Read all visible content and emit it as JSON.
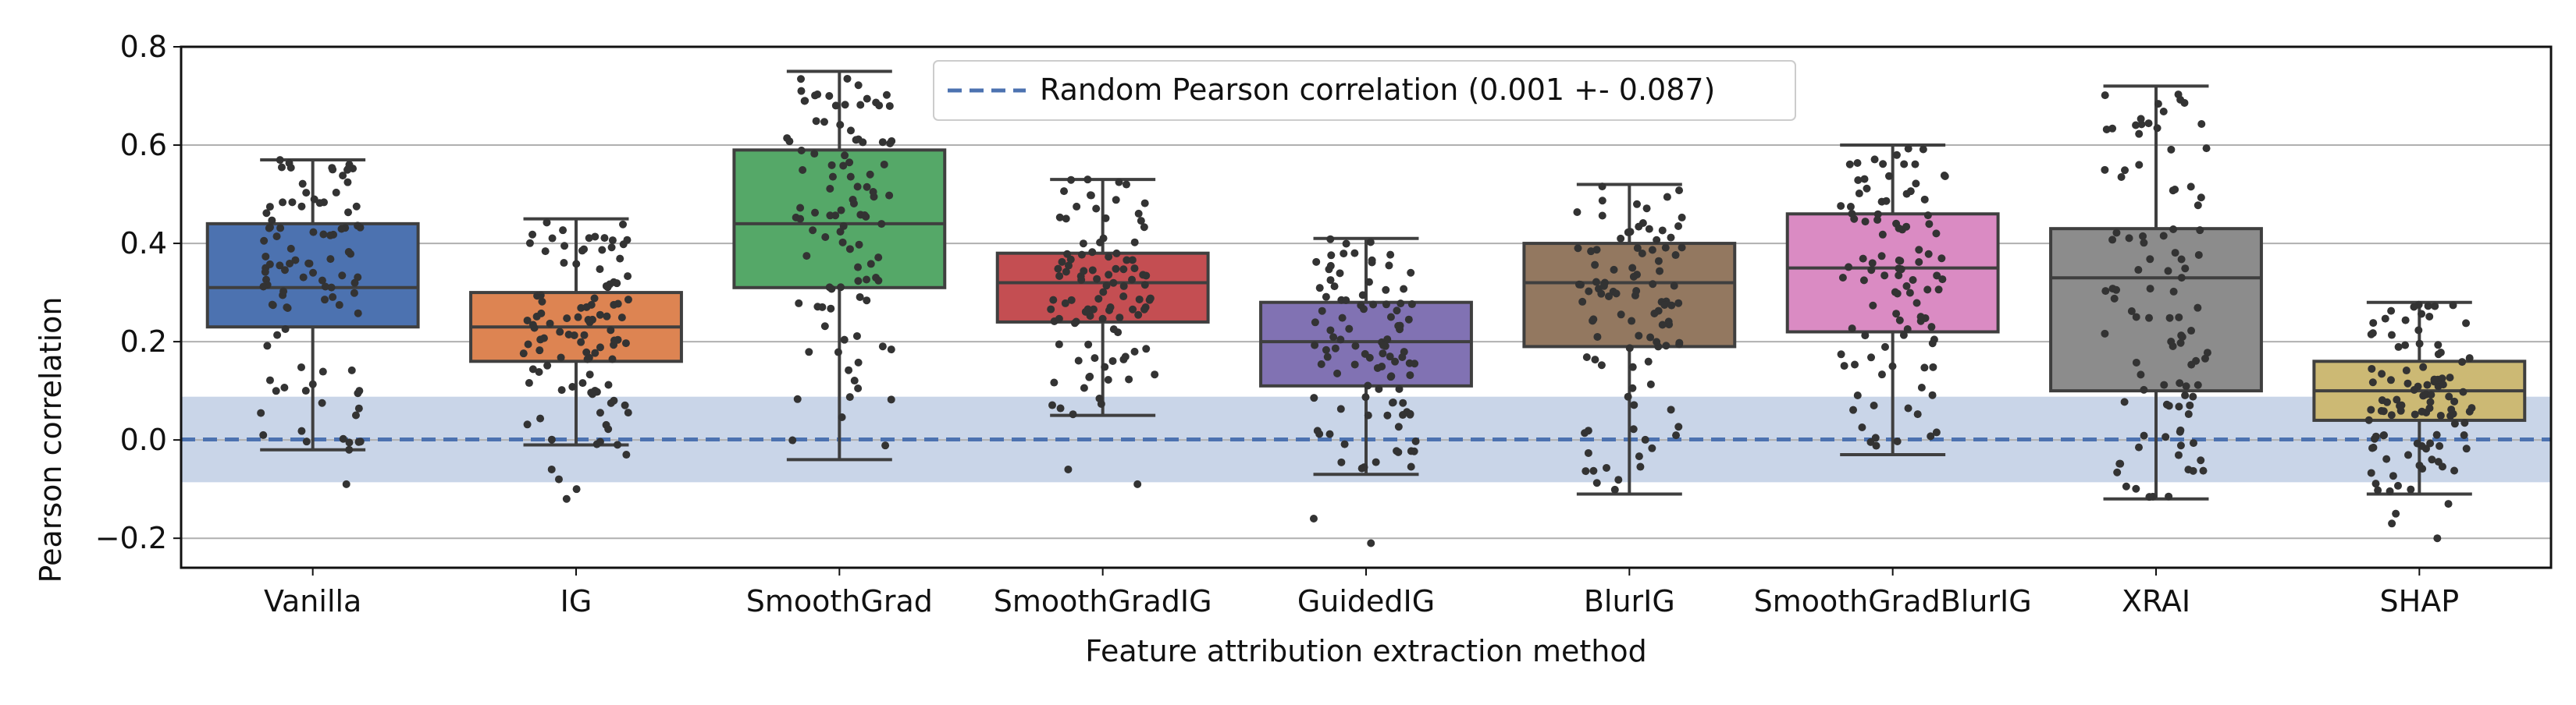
{
  "chart_data": {
    "type": "box",
    "xlabel": "Feature attribution extraction method",
    "ylabel": "Pearson correlation",
    "ylim": [
      -0.26,
      0.8
    ],
    "yticks": [
      -0.2,
      0.0,
      0.2,
      0.4,
      0.6,
      0.8
    ],
    "ytick_labels": [
      "−0.2",
      "0.0",
      "0.2",
      "0.4",
      "0.6",
      "0.8"
    ],
    "grid": "horizontal",
    "legend_position": "top-center",
    "reference": {
      "label": "Random Pearson correlation (0.001 +- 0.087)",
      "mean": 0.001,
      "std": 0.087,
      "line_color": "#4c72b0",
      "band_color": "#c9d5e8"
    },
    "point_color": "#333333",
    "categories": [
      "Vanilla",
      "IG",
      "SmoothGrad",
      "SmoothGradIG",
      "GuidedIG",
      "BlurIG",
      "SmoothGradBlurIG",
      "XRAI",
      "SHAP"
    ],
    "boxes": [
      {
        "name": "Vanilla",
        "color": "#4c72b0",
        "whislo": -0.02,
        "q1": 0.23,
        "med": 0.31,
        "q3": 0.44,
        "whishi": 0.57,
        "fliers": [
          -0.09
        ]
      },
      {
        "name": "IG",
        "color": "#dd8452",
        "whislo": -0.01,
        "q1": 0.16,
        "med": 0.23,
        "q3": 0.3,
        "whishi": 0.45,
        "fliers": [
          -0.03,
          -0.06,
          -0.08,
          -0.1,
          -0.12
        ]
      },
      {
        "name": "SmoothGrad",
        "color": "#55a868",
        "whislo": -0.04,
        "q1": 0.31,
        "med": 0.44,
        "q3": 0.59,
        "whishi": 0.75,
        "fliers": []
      },
      {
        "name": "SmoothGradIG",
        "color": "#c44e52",
        "whislo": 0.05,
        "q1": 0.24,
        "med": 0.32,
        "q3": 0.38,
        "whishi": 0.53,
        "fliers": [
          -0.06,
          -0.09
        ]
      },
      {
        "name": "GuidedIG",
        "color": "#8172b3",
        "whislo": -0.07,
        "q1": 0.11,
        "med": 0.2,
        "q3": 0.28,
        "whishi": 0.41,
        "fliers": [
          -0.16,
          -0.21
        ]
      },
      {
        "name": "BlurIG",
        "color": "#937860",
        "whislo": -0.11,
        "q1": 0.19,
        "med": 0.32,
        "q3": 0.4,
        "whishi": 0.52,
        "fliers": []
      },
      {
        "name": "SmoothGradBlurIG",
        "color": "#da8bc3",
        "whislo": -0.03,
        "q1": 0.22,
        "med": 0.35,
        "q3": 0.46,
        "whishi": 0.6,
        "fliers": []
      },
      {
        "name": "XRAI",
        "color": "#8c8c8c",
        "whislo": -0.12,
        "q1": 0.1,
        "med": 0.33,
        "q3": 0.43,
        "whishi": 0.72,
        "fliers": []
      },
      {
        "name": "SHAP",
        "color": "#ccb974",
        "whislo": -0.11,
        "q1": 0.04,
        "med": 0.1,
        "q3": 0.16,
        "whishi": 0.28,
        "fliers": [
          -0.13,
          -0.15,
          -0.17,
          -0.2
        ]
      }
    ]
  }
}
